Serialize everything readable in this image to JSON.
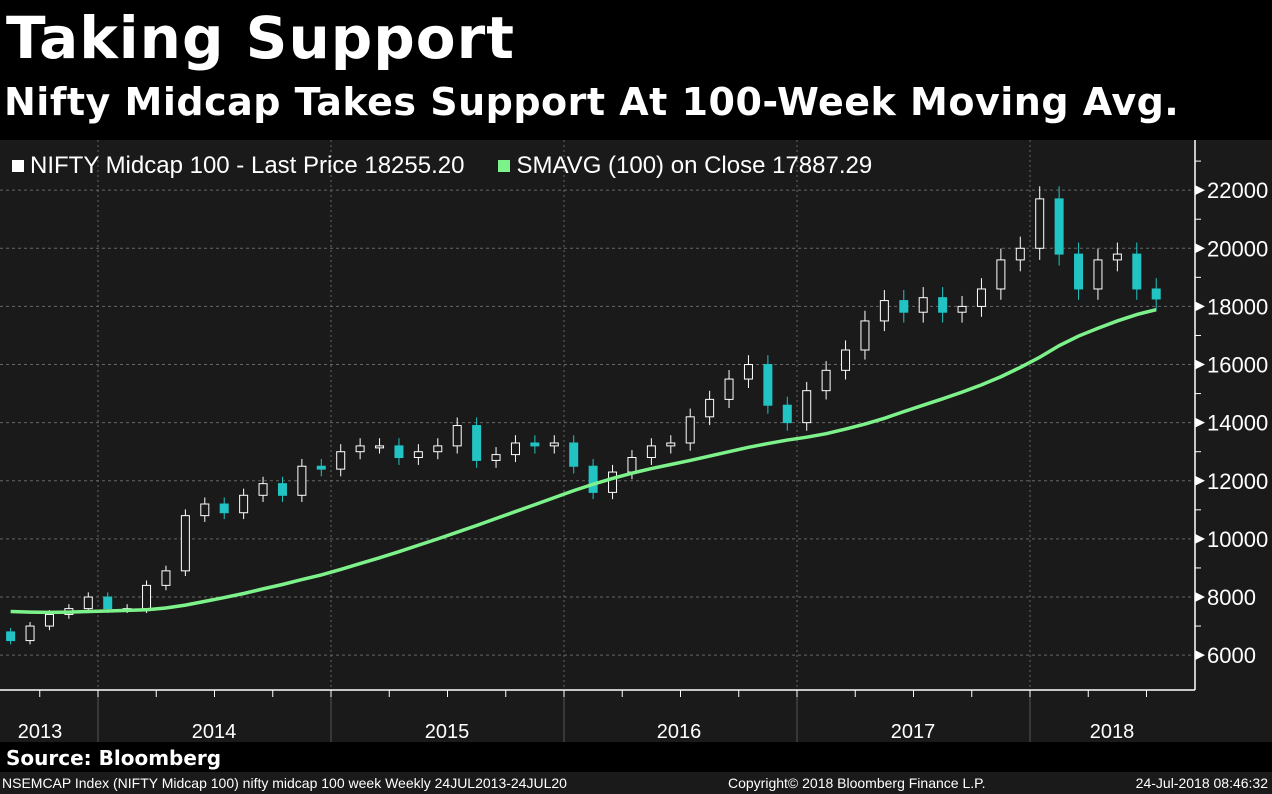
{
  "header": {
    "title": "Taking Support",
    "subtitle": "Nifty Midcap Takes Support At 100-Week Moving Avg."
  },
  "legend": {
    "series1": "NIFTY Midcap 100 - Last Price 18255.20",
    "series2": "SMAVG (100) on Close 17887.29"
  },
  "source": "Source: Bloomberg",
  "footer": {
    "left": "NSEMCAP Index (NIFTY Midcap 100) nifty midcap 100 week  Weekly 24JUL2013-24JUL20",
    "center": "Copyright© 2018 Bloomberg Finance L.P.",
    "right": "24-Jul-2018 08:46:32"
  },
  "colors": {
    "up": "#ffffff",
    "down": "#22c3c3",
    "sma": "#7ef28a",
    "grid": "#666666"
  },
  "chart_data": {
    "type": "candlestick",
    "title": "Taking Support",
    "ylim": [
      5000,
      23000
    ],
    "yticks": [
      6000,
      8000,
      10000,
      12000,
      14000,
      16000,
      18000,
      20000,
      22000
    ],
    "yticklabels": [
      "6000",
      "8000",
      "10000",
      "12000",
      "14000",
      "16000",
      "18000",
      "20000",
      "22000"
    ],
    "xticklabels": [
      "2013",
      "2014",
      "2015",
      "2016",
      "2017",
      "2018"
    ],
    "start": "2013-08",
    "series": [
      {
        "name": "NIFTY Midcap 100 - Last Price",
        "open_first": 6800,
        "close": [
          6500,
          7000,
          7400,
          7600,
          8000,
          7600,
          7600,
          8400,
          8900,
          10800,
          11200,
          10900,
          11500,
          11900,
          11500,
          12500,
          12400,
          13000,
          13200,
          13200,
          12800,
          13000,
          13200,
          13900,
          12700,
          12900,
          13300,
          13200,
          13300,
          12500,
          11600,
          12300,
          12800,
          13200,
          13300,
          14200,
          14800,
          15500,
          16000,
          14600,
          14000,
          15100,
          15800,
          16500,
          17500,
          18200,
          17800,
          18300,
          17800,
          18000,
          18600,
          19600,
          20000,
          21700,
          19800,
          18600,
          19600,
          19800,
          18600,
          18255.2
        ]
      },
      {
        "name": "SMAVG (100) on Close",
        "values": [
          7500,
          7480,
          7470,
          7480,
          7500,
          7520,
          7540,
          7560,
          7620,
          7720,
          7850,
          7980,
          8120,
          8280,
          8430,
          8600,
          8760,
          8950,
          9150,
          9350,
          9560,
          9780,
          10000,
          10230,
          10460,
          10700,
          10940,
          11180,
          11420,
          11660,
          11880,
          12080,
          12260,
          12420,
          12560,
          12700,
          12850,
          13000,
          13150,
          13280,
          13400,
          13500,
          13620,
          13780,
          13950,
          14150,
          14380,
          14600,
          14820,
          15050,
          15300,
          15580,
          15900,
          16250,
          16650,
          16980,
          17250,
          17500,
          17720,
          17887.29
        ]
      }
    ]
  }
}
